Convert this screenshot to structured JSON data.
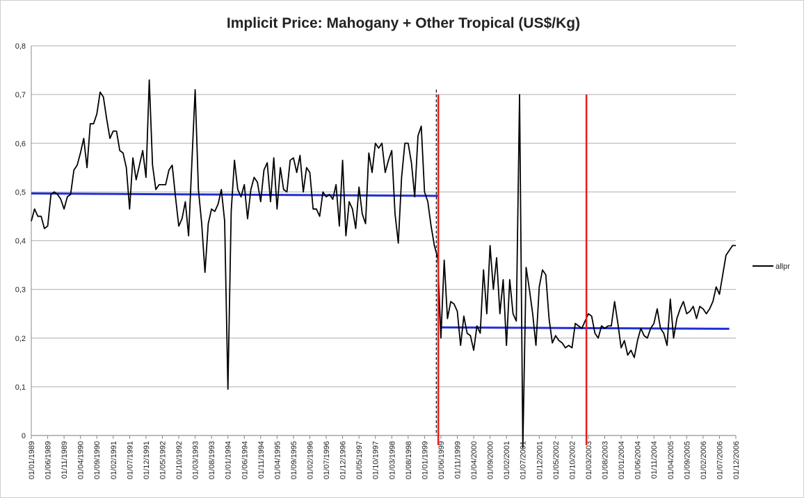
{
  "chart_data": {
    "type": "line",
    "title": "Implicit Price: Mahogany + Other Tropical (US$/Kg)",
    "categories": [
      "01/01/1989",
      null,
      null,
      null,
      null,
      "01/06/1989",
      null,
      null,
      null,
      null,
      "01/11/1989",
      null,
      null,
      null,
      null,
      "01/04/1990",
      null,
      null,
      null,
      null,
      "01/09/1990",
      null,
      null,
      null,
      null,
      "01/02/1991",
      null,
      null,
      null,
      null,
      "01/07/1991",
      null,
      null,
      null,
      null,
      "01/12/1991",
      null,
      null,
      null,
      null,
      "01/05/1992",
      null,
      null,
      null,
      null,
      "01/10/1992",
      null,
      null,
      null,
      null,
      "01/03/1993",
      null,
      null,
      null,
      null,
      "01/08/1993",
      null,
      null,
      null,
      null,
      "01/01/1994",
      null,
      null,
      null,
      null,
      "01/06/1994",
      null,
      null,
      null,
      null,
      "01/11/1994",
      null,
      null,
      null,
      null,
      "01/04/1995",
      null,
      null,
      null,
      null,
      "01/09/1995",
      null,
      null,
      null,
      null,
      "01/02/1996",
      null,
      null,
      null,
      null,
      "01/07/1996",
      null,
      null,
      null,
      null,
      "01/12/1996",
      null,
      null,
      null,
      null,
      "01/05/1997",
      null,
      null,
      null,
      null,
      "01/10/1997",
      null,
      null,
      null,
      null,
      "01/03/1998",
      null,
      null,
      null,
      null,
      "01/08/1998",
      null,
      null,
      null,
      null,
      "01/01/1999",
      null,
      null,
      null,
      null,
      "01/06/1999",
      null,
      null,
      null,
      null,
      "01/11/1999",
      null,
      null,
      null,
      null,
      "01/04/2000",
      null,
      null,
      null,
      null,
      "01/09/2000",
      null,
      null,
      null,
      null,
      "01/02/2001",
      null,
      null,
      null,
      null,
      "01/07/2001",
      null,
      null,
      null,
      null,
      "01/12/2001",
      null,
      null,
      null,
      null,
      "01/05/2002",
      null,
      null,
      null,
      null,
      "01/10/2002",
      null,
      null,
      null,
      null,
      "01/03/2003",
      null,
      null,
      null,
      null,
      "01/08/2003",
      null,
      null,
      null,
      null,
      "01/01/2004",
      null,
      null,
      null,
      null,
      "01/06/2004",
      null,
      null,
      null,
      null,
      "01/11/2004",
      null,
      null,
      null,
      null,
      "01/04/2005",
      null,
      null,
      null,
      null,
      "01/09/2005",
      null,
      null,
      null,
      null,
      "01/02/2006",
      null,
      null,
      null,
      null,
      "01/07/2006",
      null,
      null,
      null,
      null,
      "01/12/2006"
    ],
    "series": [
      {
        "name": "allpr",
        "color": "#000000",
        "values": [
          0.44,
          0.465,
          0.45,
          0.45,
          0.425,
          0.43,
          0.495,
          0.5,
          0.495,
          0.485,
          0.465,
          0.49,
          0.495,
          0.545,
          0.555,
          0.58,
          0.61,
          0.55,
          0.64,
          0.64,
          0.66,
          0.705,
          0.695,
          0.65,
          0.61,
          0.625,
          0.625,
          0.585,
          0.58,
          0.55,
          0.465,
          0.57,
          0.525,
          0.555,
          0.585,
          0.53,
          0.73,
          0.555,
          0.505,
          0.515,
          0.515,
          0.515,
          0.545,
          0.555,
          0.49,
          0.43,
          0.445,
          0.48,
          0.41,
          0.56,
          0.71,
          0.505,
          0.435,
          0.335,
          0.435,
          0.465,
          0.46,
          0.475,
          0.505,
          0.44,
          0.095,
          0.46,
          0.565,
          0.505,
          0.49,
          0.515,
          0.445,
          0.505,
          0.53,
          0.52,
          0.48,
          0.545,
          0.56,
          0.48,
          0.57,
          0.465,
          0.55,
          0.505,
          0.5,
          0.565,
          0.57,
          0.54,
          0.575,
          0.5,
          0.55,
          0.54,
          0.465,
          0.465,
          0.45,
          0.5,
          0.49,
          0.495,
          0.485,
          0.515,
          0.43,
          0.565,
          0.41,
          0.48,
          0.465,
          0.425,
          0.51,
          0.455,
          0.435,
          0.58,
          0.54,
          0.6,
          0.59,
          0.6,
          0.54,
          0.565,
          0.585,
          0.455,
          0.395,
          0.53,
          0.6,
          0.6,
          0.56,
          0.49,
          0.615,
          0.635,
          0.5,
          0.48,
          0.43,
          0.39,
          0.365,
          0.2,
          0.36,
          0.24,
          0.275,
          0.27,
          0.255,
          0.185,
          0.245,
          0.21,
          0.205,
          0.175,
          0.225,
          0.21,
          0.34,
          0.25,
          0.39,
          0.3,
          0.365,
          0.25,
          0.32,
          0.185,
          0.32,
          0.25,
          0.235,
          0.7,
          -0.025,
          0.345,
          0.3,
          0.25,
          0.185,
          0.305,
          0.34,
          0.33,
          0.24,
          0.19,
          0.205,
          0.195,
          0.19,
          0.18,
          0.185,
          0.18,
          0.23,
          0.225,
          0.22,
          0.235,
          0.25,
          0.245,
          0.21,
          0.2,
          0.225,
          0.22,
          0.225,
          0.225,
          0.275,
          0.23,
          0.18,
          0.195,
          0.165,
          0.175,
          0.16,
          0.195,
          0.22,
          0.205,
          0.2,
          0.22,
          0.23,
          0.26,
          0.22,
          0.21,
          0.185,
          0.28,
          0.2,
          0.24,
          0.26,
          0.275,
          0.25,
          0.255,
          0.265,
          0.24,
          0.265,
          0.26,
          0.25,
          0.26,
          0.275,
          0.305,
          0.29,
          0.33,
          0.37,
          0.38,
          0.39,
          0.39
        ]
      }
    ],
    "ylim": [
      0,
      0.8
    ],
    "yticks": [
      0,
      {
        "value": 0.1,
        "label": "0,1"
      },
      {
        "value": 0.2,
        "label": "0,2"
      },
      {
        "value": 0.3,
        "label": "0,3"
      },
      {
        "value": 0.4,
        "label": "0,4"
      },
      {
        "value": 0.5,
        "label": "0,5"
      },
      {
        "value": 0.6,
        "label": "0,6"
      },
      {
        "value": 0.7,
        "label": "0,7"
      },
      {
        "value": 0.8,
        "label": "0,8"
      }
    ],
    "grid": true,
    "legend": "right",
    "mean_lines": [
      {
        "from": 0,
        "to": 124,
        "start": 0.497,
        "end": 0.492,
        "color": "#1f2fd6"
      },
      {
        "from": 125,
        "to": 213,
        "start": 0.222,
        "end": 0.219,
        "color": "#1f2fd6"
      }
    ],
    "break_lines": [
      {
        "x": 123.6,
        "top": 0.71,
        "color": "#000000",
        "dashed": true
      },
      {
        "x": 124.2,
        "top": 0.7,
        "color": "#e8191c",
        "dashed": false
      },
      {
        "x": 169.4,
        "top": 0.7,
        "color": "#e8191c",
        "dashed": false
      }
    ]
  }
}
